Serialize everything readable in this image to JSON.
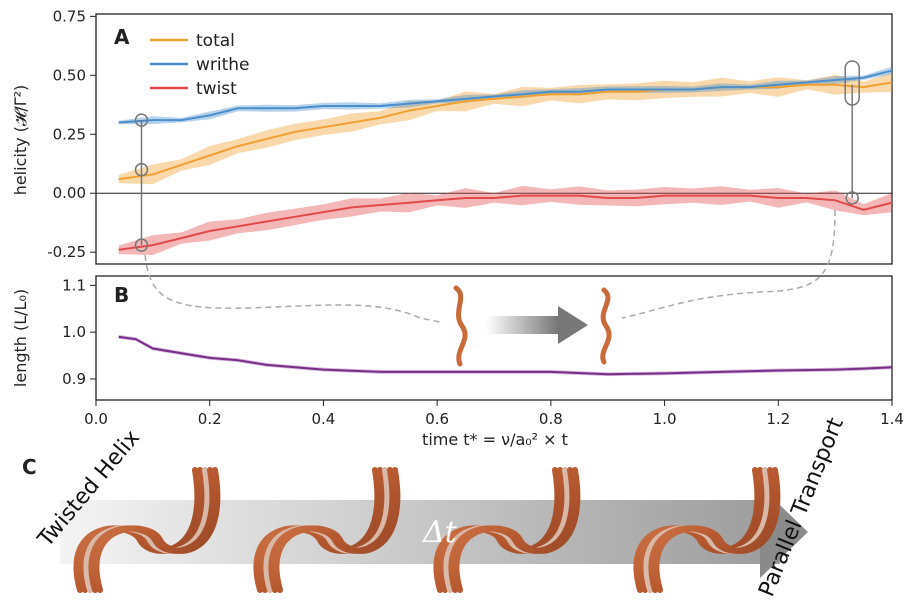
{
  "chart_data": [
    {
      "panel": "A",
      "type": "line",
      "xlim": [
        0.0,
        1.4
      ],
      "ylim": [
        -0.3,
        0.76
      ],
      "ylabel": "helicity (𝓗/Γ²)",
      "yticks": [
        "0.75",
        "0.50",
        "0.25",
        "0.00",
        "-0.25"
      ],
      "grid": false,
      "legend_position": "top-left",
      "series": [
        {
          "name": "total",
          "color": "#f0a030",
          "x": [
            0.04,
            0.1,
            0.15,
            0.2,
            0.25,
            0.3,
            0.35,
            0.4,
            0.45,
            0.5,
            0.55,
            0.6,
            0.65,
            0.7,
            0.75,
            0.8,
            0.85,
            0.9,
            0.95,
            1.0,
            1.05,
            1.1,
            1.15,
            1.2,
            1.25,
            1.3,
            1.35,
            1.4
          ],
          "values": [
            0.06,
            0.08,
            0.12,
            0.16,
            0.2,
            0.23,
            0.26,
            0.28,
            0.3,
            0.32,
            0.35,
            0.37,
            0.39,
            0.4,
            0.41,
            0.42,
            0.42,
            0.43,
            0.43,
            0.44,
            0.44,
            0.45,
            0.45,
            0.45,
            0.46,
            0.46,
            0.45,
            0.47
          ]
        },
        {
          "name": "writhe",
          "color": "#4a8fcd",
          "x": [
            0.04,
            0.1,
            0.15,
            0.2,
            0.25,
            0.3,
            0.35,
            0.4,
            0.45,
            0.5,
            0.55,
            0.6,
            0.65,
            0.7,
            0.75,
            0.8,
            0.85,
            0.9,
            0.95,
            1.0,
            1.05,
            1.1,
            1.15,
            1.2,
            1.25,
            1.3,
            1.35,
            1.4
          ],
          "values": [
            0.3,
            0.31,
            0.31,
            0.33,
            0.36,
            0.36,
            0.36,
            0.37,
            0.37,
            0.37,
            0.38,
            0.39,
            0.4,
            0.41,
            0.42,
            0.43,
            0.43,
            0.44,
            0.44,
            0.44,
            0.44,
            0.45,
            0.45,
            0.46,
            0.47,
            0.48,
            0.49,
            0.52
          ]
        },
        {
          "name": "twist",
          "color": "#e24a4a",
          "x": [
            0.04,
            0.1,
            0.15,
            0.2,
            0.25,
            0.3,
            0.35,
            0.4,
            0.45,
            0.5,
            0.55,
            0.6,
            0.65,
            0.7,
            0.75,
            0.8,
            0.85,
            0.9,
            0.95,
            1.0,
            1.05,
            1.1,
            1.15,
            1.2,
            1.25,
            1.3,
            1.35,
            1.4
          ],
          "values": [
            -0.24,
            -0.22,
            -0.19,
            -0.16,
            -0.14,
            -0.12,
            -0.1,
            -0.08,
            -0.06,
            -0.05,
            -0.04,
            -0.03,
            -0.02,
            -0.02,
            -0.01,
            -0.01,
            -0.01,
            -0.02,
            -0.02,
            -0.01,
            -0.01,
            -0.01,
            -0.01,
            -0.02,
            -0.02,
            -0.03,
            -0.07,
            -0.04
          ]
        }
      ],
      "annotations": {
        "markers_early": {
          "x": 0.08,
          "values": [
            0.31,
            0.1,
            -0.22
          ]
        },
        "markers_late": {
          "x": 1.33,
          "values": [
            0.51,
            0.46,
            -0.02
          ]
        }
      }
    },
    {
      "panel": "B",
      "type": "line",
      "xlim": [
        0.0,
        1.4
      ],
      "ylim": [
        0.855,
        1.12
      ],
      "ylabel": "length (L/L₀)",
      "xlabel": "time t* = ν/a₀² × t",
      "xticks": [
        "0.0",
        "0.2",
        "0.4",
        "0.6",
        "0.8",
        "1.0",
        "1.2",
        "1.4"
      ],
      "yticks": [
        "1.1",
        "1.0",
        "0.9"
      ],
      "series": [
        {
          "name": "",
          "color": "#7a2d8a",
          "x": [
            0.04,
            0.07,
            0.1,
            0.15,
            0.2,
            0.25,
            0.3,
            0.4,
            0.5,
            0.6,
            0.7,
            0.8,
            0.9,
            1.0,
            1.1,
            1.2,
            1.3,
            1.35,
            1.4
          ],
          "values": [
            0.99,
            0.985,
            0.965,
            0.955,
            0.945,
            0.94,
            0.93,
            0.92,
            0.915,
            0.915,
            0.915,
            0.915,
            0.91,
            0.912,
            0.915,
            0.918,
            0.92,
            0.922,
            0.925
          ]
        }
      ]
    }
  ],
  "panel_c": {
    "label": "C",
    "left_text": "Twisted Helix",
    "center_text": "Δt",
    "right_text": "Parallel Transport"
  },
  "colors": {
    "total": "#f0a030",
    "writhe": "#4a8fcd",
    "twist": "#e24a4a",
    "length": "#7a2d8a",
    "rope": "#c96a3a"
  }
}
